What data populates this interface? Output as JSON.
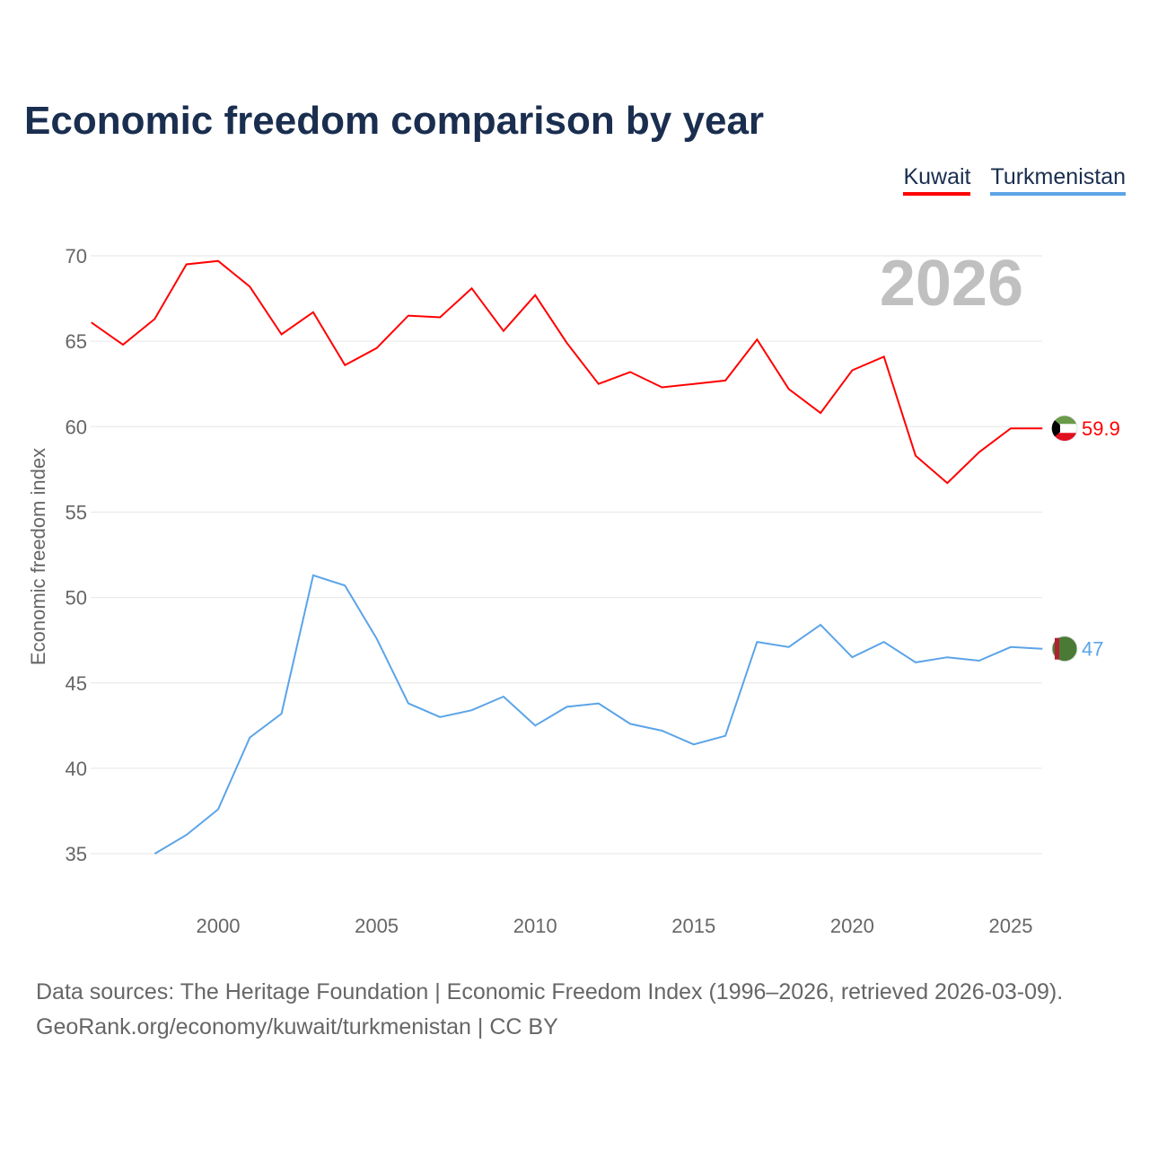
{
  "title": "Economic freedom comparison by year",
  "source_line1": "Data sources: The Heritage Foundation | Economic Freedom Index (1996–2026, retrieved 2026-03-09).",
  "source_line2": "GeoRank.org/economy/kuwait/turkmenistan | CC BY",
  "chart_data": {
    "type": "line",
    "title": "Economic freedom comparison by year",
    "ylabel": "Economic freedom index",
    "xlabel": "",
    "year_watermark": "2026",
    "xlim": [
      1996,
      2026
    ],
    "ylim": [
      32,
      72
    ],
    "xticks": [
      2000,
      2005,
      2010,
      2015,
      2020,
      2025
    ],
    "yticks": [
      35,
      40,
      45,
      50,
      55,
      60,
      65,
      70
    ],
    "grid": true,
    "legend_position": "top-right",
    "series": [
      {
        "name": "Kuwait",
        "color": "#ff0000",
        "end_label": "59.9",
        "start_year": 1996,
        "values": [
          66.1,
          64.8,
          66.3,
          69.5,
          69.7,
          68.2,
          65.4,
          66.7,
          63.6,
          64.6,
          66.5,
          66.4,
          68.1,
          65.6,
          67.7,
          64.9,
          62.5,
          63.2,
          62.3,
          62.5,
          62.7,
          65.1,
          62.2,
          60.8,
          63.3,
          64.1,
          58.3,
          56.7,
          58.5,
          59.9,
          59.9
        ]
      },
      {
        "name": "Turkmenistan",
        "color": "#5ba4e8",
        "end_label": "47",
        "start_year": 1998,
        "values": [
          35.0,
          36.1,
          37.6,
          41.8,
          43.2,
          51.3,
          50.7,
          47.6,
          43.8,
          43.0,
          43.4,
          44.2,
          42.5,
          43.6,
          43.8,
          42.6,
          42.2,
          41.4,
          41.9,
          47.4,
          47.1,
          48.4,
          46.5,
          47.4,
          46.2,
          46.5,
          46.3,
          47.1,
          47.0
        ]
      }
    ]
  }
}
